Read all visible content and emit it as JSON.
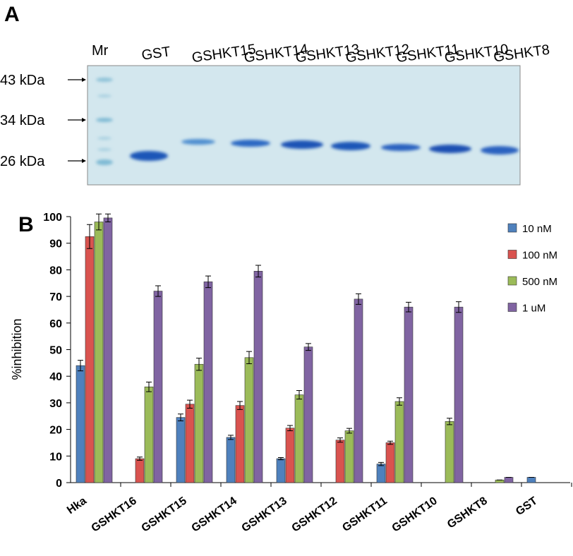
{
  "panel_a": {
    "label": "A",
    "marker_header": "Mr",
    "lanes": [
      "GST",
      "GSHKT15",
      "GSHKT14",
      "GSHKT13",
      "GSHKT12",
      "GSHKT11",
      "GSHKT10",
      "GSHKT8"
    ],
    "markers": [
      "43 kDa",
      "34 kDa",
      "26 kDa"
    ]
  },
  "chart_data": {
    "type": "bar",
    "panel_label": "B",
    "y_label": "%inhibition",
    "categories": [
      "Hka",
      "GSHKT16",
      "GSHKT15",
      "GSHKT14",
      "GSHKT13",
      "GSHKT12",
      "GSHKT11",
      "GSHKT10",
      "GSHKT8",
      "GST"
    ],
    "series": [
      {
        "name": "10 nM",
        "color": "#4f81bd",
        "values": [
          44,
          null,
          24.5,
          17,
          9,
          null,
          7,
          null,
          null,
          2
        ],
        "errors": [
          2,
          null,
          1.3,
          0.8,
          0.4,
          null,
          0.6,
          null,
          null,
          0
        ]
      },
      {
        "name": "100 nM",
        "color": "#d9534f",
        "values": [
          92.5,
          9,
          29.5,
          29,
          20.5,
          16,
          15,
          null,
          null,
          null
        ],
        "errors": [
          4.5,
          0.6,
          1.5,
          1.5,
          1,
          0.8,
          0.6,
          null,
          null,
          null
        ]
      },
      {
        "name": "500 nM",
        "color": "#9bbb59",
        "values": [
          98,
          36,
          44.5,
          47,
          33,
          19.5,
          30.5,
          23,
          1,
          null
        ],
        "errors": [
          3,
          1.8,
          2.3,
          2.3,
          1.6,
          0.9,
          1.4,
          1.2,
          0,
          null
        ]
      },
      {
        "name": "1 uM",
        "color": "#8064a2",
        "values": [
          99.5,
          72,
          75.5,
          79.5,
          51,
          69,
          66,
          66,
          2,
          null
        ],
        "errors": [
          1.5,
          2,
          2.2,
          2.2,
          1.3,
          2,
          1.8,
          2,
          0,
          null
        ]
      }
    ],
    "ylim": [
      0,
      100
    ],
    "yticks": [
      0,
      10,
      20,
      30,
      40,
      50,
      60,
      70,
      80,
      90,
      100
    ],
    "grid": false,
    "legend": "top-right"
  }
}
